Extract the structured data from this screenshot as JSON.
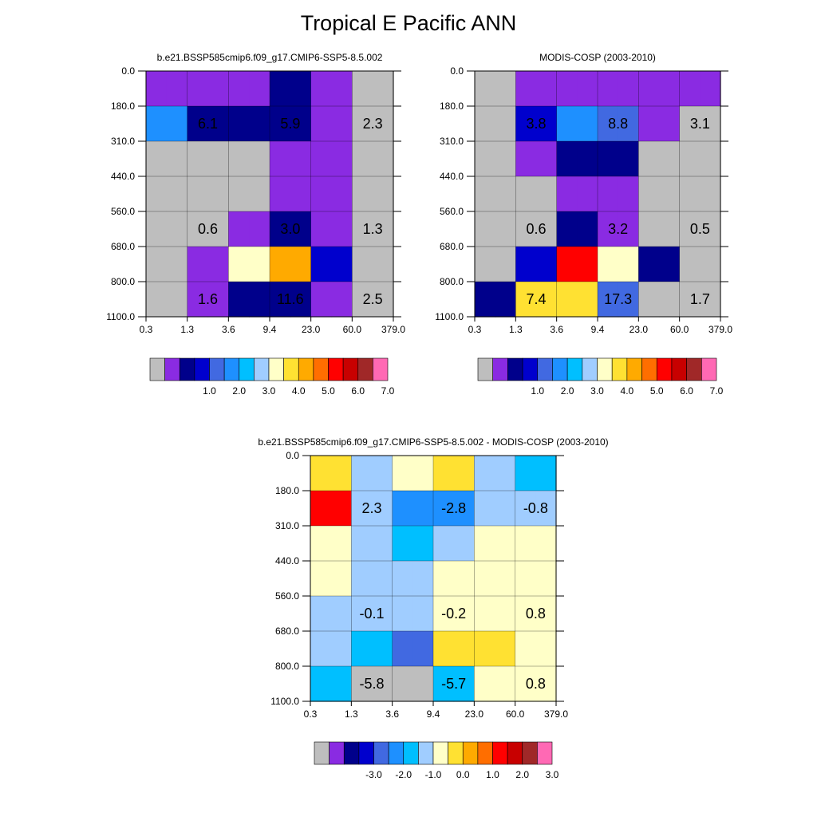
{
  "page_title": "Tropical E Pacific ANN",
  "colors": {
    "abs_palette": [
      "#bebebe",
      "#8a2be2",
      "#00008b",
      "#0000cd",
      "#4169e1",
      "#1e90ff",
      "#00bfff",
      "#a0cdff",
      "#ffffc8",
      "#ffe132",
      "#ffaa00",
      "#ff6e00",
      "#ff0000",
      "#c80000",
      "#a02828",
      "#ff69b4"
    ],
    "diff_palette": [
      "#bebebe",
      "#8a2be2",
      "#00008b",
      "#0000cd",
      "#4169e1",
      "#1e90ff",
      "#00bfff",
      "#a0cdff",
      "#ffffc8",
      "#ffe132",
      "#ffaa00",
      "#ff6e00",
      "#ff0000",
      "#c80000",
      "#a02828",
      "#ff69b4"
    ]
  },
  "chart_data": [
    {
      "type": "heatmap",
      "id": "model",
      "title": "b.e21.BSSP585cmip6.f09_g17.CMIP6-SSP5-8.5.002",
      "x_ticks": [
        "0.3",
        "1.3",
        "3.6",
        "9.4",
        "23.0",
        "60.0",
        "379.0"
      ],
      "y_ticks": [
        "0.0",
        "180.0",
        "310.0",
        "440.0",
        "560.0",
        "680.0",
        "800.0",
        "1100.0"
      ],
      "cell_colors": [
        [
          1,
          1,
          1,
          1,
          1,
          1,
          2,
          2,
          1,
          1,
          0,
          0
        ],
        [
          5,
          5,
          2,
          2,
          2,
          2,
          2,
          2,
          1,
          1,
          0,
          0
        ],
        [
          0,
          0,
          0,
          0,
          0,
          0,
          1,
          1,
          1,
          1,
          0,
          0
        ],
        [
          0,
          0,
          0,
          0,
          0,
          0,
          1,
          1,
          1,
          1,
          0,
          0
        ],
        [
          0,
          0,
          0,
          0,
          1,
          1,
          2,
          2,
          1,
          1,
          0,
          0
        ],
        [
          0,
          0,
          1,
          1,
          8,
          8,
          10,
          10,
          3,
          3,
          0,
          0
        ],
        [
          0,
          0,
          1,
          1,
          2,
          2,
          2,
          2,
          1,
          1,
          0,
          0
        ]
      ],
      "labels": [
        {
          "text": "6.1",
          "col": 1,
          "row": 1
        },
        {
          "text": "5.9",
          "col": 3,
          "row": 1
        },
        {
          "text": "2.3",
          "col": 5,
          "row": 1
        },
        {
          "text": "0.6",
          "col": 1,
          "row": 4
        },
        {
          "text": "3.0",
          "col": 3,
          "row": 4
        },
        {
          "text": "1.3",
          "col": 5,
          "row": 4
        },
        {
          "text": "1.6",
          "col": 1,
          "row": 6
        },
        {
          "text": "11.6",
          "col": 3,
          "row": 6
        },
        {
          "text": "2.5",
          "col": 5,
          "row": 6
        }
      ],
      "colorbar": {
        "palette": "abs_palette",
        "labels": [
          "1.0",
          "2.0",
          "3.0",
          "4.0",
          "5.0",
          "6.0",
          "7.0"
        ]
      }
    },
    {
      "type": "heatmap",
      "id": "obs",
      "title": "MODIS-COSP (2003-2010)",
      "x_ticks": [
        "0.3",
        "1.3",
        "3.6",
        "9.4",
        "23.0",
        "60.0",
        "379.0"
      ],
      "y_ticks": [
        "0.0",
        "180.0",
        "310.0",
        "440.0",
        "560.0",
        "680.0",
        "800.0",
        "1100.0"
      ],
      "cell_colors": [
        [
          0,
          0,
          1,
          1,
          1,
          1,
          1,
          1,
          1,
          1,
          1,
          1
        ],
        [
          0,
          0,
          3,
          3,
          5,
          5,
          4,
          4,
          1,
          1,
          0,
          0
        ],
        [
          0,
          0,
          1,
          1,
          2,
          2,
          2,
          2,
          0,
          0,
          0,
          0
        ],
        [
          0,
          0,
          0,
          0,
          1,
          1,
          1,
          1,
          0,
          0,
          0,
          0
        ],
        [
          0,
          0,
          0,
          0,
          2,
          2,
          1,
          1,
          0,
          0,
          0,
          0
        ],
        [
          0,
          0,
          3,
          3,
          12,
          12,
          8,
          8,
          2,
          2,
          0,
          0
        ],
        [
          2,
          2,
          9,
          9,
          9,
          9,
          4,
          4,
          0,
          0,
          0,
          0
        ]
      ],
      "labels": [
        {
          "text": "3.8",
          "col": 1,
          "row": 1
        },
        {
          "text": "8.8",
          "col": 3,
          "row": 1
        },
        {
          "text": "3.1",
          "col": 5,
          "row": 1
        },
        {
          "text": "0.6",
          "col": 1,
          "row": 4
        },
        {
          "text": "3.2",
          "col": 3,
          "row": 4
        },
        {
          "text": "0.5",
          "col": 5,
          "row": 4
        },
        {
          "text": "7.4",
          "col": 1,
          "row": 6
        },
        {
          "text": "17.3",
          "col": 3,
          "row": 6
        },
        {
          "text": "1.7",
          "col": 5,
          "row": 6
        }
      ],
      "colorbar": {
        "palette": "abs_palette",
        "labels": [
          "1.0",
          "2.0",
          "3.0",
          "4.0",
          "5.0",
          "6.0",
          "7.0"
        ]
      }
    },
    {
      "type": "heatmap",
      "id": "diff",
      "title": "b.e21.BSSP585cmip6.f09_g17.CMIP6-SSP5-8.5.002 - MODIS-COSP (2003-2010)",
      "x_ticks": [
        "0.3",
        "1.3",
        "3.6",
        "9.4",
        "23.0",
        "60.0",
        "379.0"
      ],
      "y_ticks": [
        "0.0",
        "180.0",
        "310.0",
        "440.0",
        "560.0",
        "680.0",
        "800.0",
        "1100.0"
      ],
      "cell_colors": [
        [
          9,
          9,
          7,
          7,
          8,
          8,
          9,
          9,
          7,
          7,
          6,
          6
        ],
        [
          12,
          12,
          7,
          7,
          5,
          5,
          5,
          5,
          7,
          7,
          7,
          7
        ],
        [
          8,
          8,
          7,
          7,
          6,
          6,
          7,
          7,
          8,
          8,
          8,
          8
        ],
        [
          8,
          8,
          7,
          7,
          7,
          7,
          8,
          8,
          8,
          8,
          8,
          8
        ],
        [
          7,
          7,
          7,
          7,
          7,
          7,
          8,
          8,
          8,
          8,
          8,
          8
        ],
        [
          7,
          7,
          6,
          6,
          4,
          4,
          9,
          9,
          9,
          9,
          8,
          8
        ],
        [
          6,
          6,
          0,
          0,
          0,
          0,
          6,
          6,
          8,
          8,
          8,
          8
        ]
      ],
      "labels": [
        {
          "text": "2.3",
          "col": 1,
          "row": 1
        },
        {
          "text": "-2.8",
          "col": 3,
          "row": 1
        },
        {
          "text": "-0.8",
          "col": 5,
          "row": 1
        },
        {
          "text": "-0.1",
          "col": 1,
          "row": 4
        },
        {
          "text": "-0.2",
          "col": 3,
          "row": 4
        },
        {
          "text": "0.8",
          "col": 5,
          "row": 4
        },
        {
          "text": "-5.8",
          "col": 1,
          "row": 6
        },
        {
          "text": "-5.7",
          "col": 3,
          "row": 6
        },
        {
          "text": "0.8",
          "col": 5,
          "row": 6
        }
      ],
      "colorbar": {
        "palette": "diff_palette",
        "labels": [
          "-3.0",
          "-2.0",
          "-1.0",
          "0.0",
          "1.0",
          "2.0",
          "3.0"
        ]
      }
    }
  ]
}
